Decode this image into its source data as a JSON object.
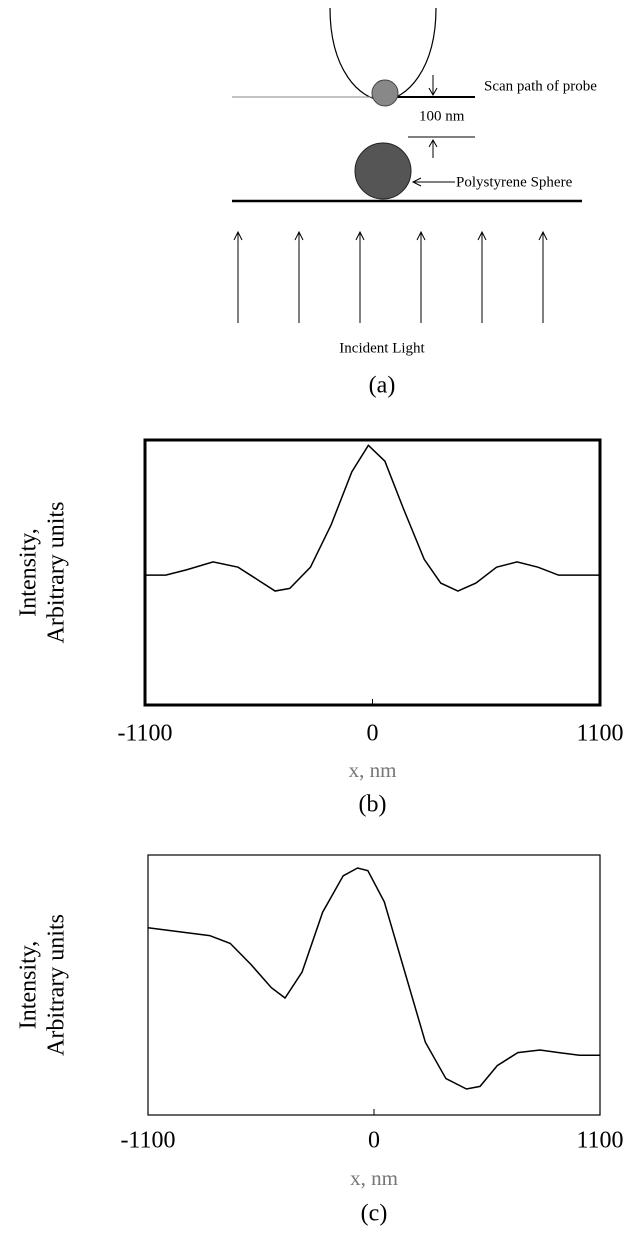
{
  "diagram": {
    "probe_label": "Scan path of probe",
    "gap_label": "100 nm",
    "sphere_label": "Polystyrene Sphere",
    "light_label": "Incident Light",
    "caption": "(a)"
  },
  "chart_data": [
    {
      "type": "line",
      "caption": "(b)",
      "ylabel": [
        "Intensity,",
        "Arbitrary units"
      ],
      "xlabel": "x, nm",
      "xlim": [
        -1100,
        1100
      ],
      "xticks": [
        -1100,
        0,
        1100
      ],
      "ylim": [
        0,
        1
      ],
      "x": [
        -1100,
        -1000,
        -900,
        -771,
        -650,
        -550,
        -471,
        -400,
        -300,
        -200,
        -100,
        -20,
        60,
        150,
        250,
        330,
        413,
        500,
        600,
        699,
        800,
        900,
        1000,
        1100
      ],
      "series": [
        {
          "color": "#000000",
          "values": [
            0.49,
            0.49,
            0.51,
            0.54,
            0.52,
            0.47,
            0.43,
            0.44,
            0.52,
            0.68,
            0.88,
            0.98,
            0.92,
            0.74,
            0.55,
            0.46,
            0.43,
            0.46,
            0.52,
            0.54,
            0.52,
            0.49,
            0.49,
            0.49
          ]
        }
      ]
    },
    {
      "type": "line",
      "caption": "(c)",
      "ylabel": [
        "Intensity,",
        "Arbitrary units"
      ],
      "xlabel": "x, nm",
      "xlim": [
        -1100,
        1100
      ],
      "xticks": [
        -1100,
        0,
        1100
      ],
      "ylim": [
        0,
        1
      ],
      "x": [
        -1100,
        -1000,
        -900,
        -800,
        -700,
        -600,
        -500,
        -433,
        -350,
        -250,
        -150,
        -80,
        -30,
        50,
        150,
        250,
        350,
        450,
        516,
        600,
        700,
        808,
        900,
        1000,
        1100
      ],
      "series": [
        {
          "color": "#000000",
          "values": [
            0.72,
            0.71,
            0.7,
            0.69,
            0.66,
            0.58,
            0.49,
            0.45,
            0.55,
            0.78,
            0.92,
            0.95,
            0.94,
            0.82,
            0.55,
            0.28,
            0.14,
            0.1,
            0.11,
            0.19,
            0.24,
            0.25,
            0.24,
            0.23,
            0.23
          ]
        }
      ]
    }
  ]
}
